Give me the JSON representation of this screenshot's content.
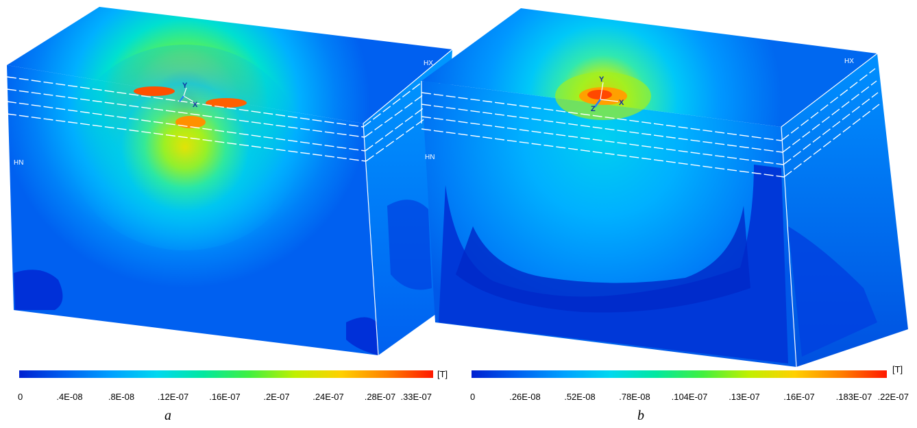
{
  "panels": [
    {
      "caption": "a",
      "colorbar": {
        "unit": "[T]",
        "ticks": [
          "0",
          ".4E-08",
          ".8E-08",
          ".12E-07",
          ".16E-07",
          ".2E-07",
          ".24E-07",
          ".28E-07",
          ".33E-07"
        ],
        "stops": [
          "#0020d0",
          "#0060f0",
          "#00a0ff",
          "#00d8f0",
          "#00e8a0",
          "#40f040",
          "#c0f000",
          "#ffd000",
          "#ff8000",
          "#ff1800"
        ]
      },
      "labels": {
        "node_top": "HX",
        "node_side": "HN",
        "axis_y": "Y",
        "axis_x": "X"
      }
    },
    {
      "caption": "b",
      "colorbar": {
        "unit": "[T]",
        "ticks": [
          "0",
          ".26E-08",
          ".52E-08",
          ".78E-08",
          ".104E-07",
          ".13E-07",
          ".16E-07",
          ".183E-07",
          ".22E-07"
        ],
        "stops": [
          "#0020d0",
          "#0060f0",
          "#00a0ff",
          "#00d8f0",
          "#00e8a0",
          "#40f040",
          "#c0f000",
          "#ffd000",
          "#ff8000",
          "#ff1800"
        ]
      },
      "labels": {
        "node_top": "HX",
        "node_side": "HN",
        "axis_y": "Y",
        "axis_x": "X",
        "axis_z": "Z"
      }
    }
  ]
}
